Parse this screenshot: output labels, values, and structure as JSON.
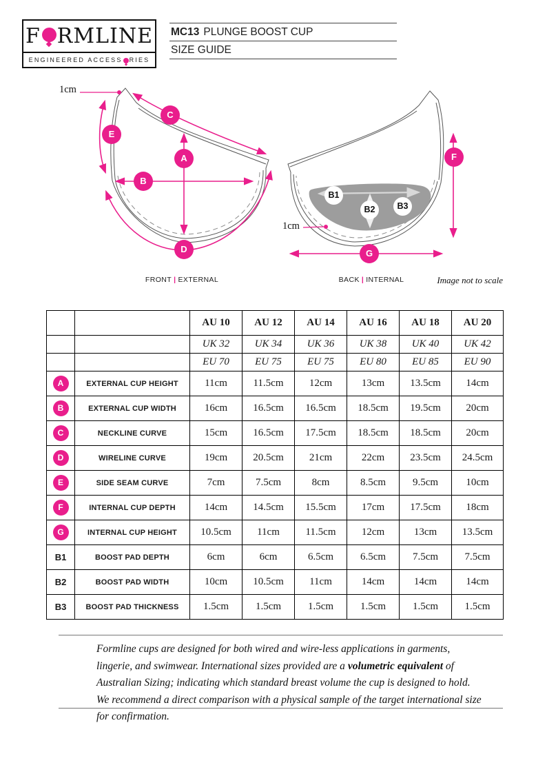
{
  "logo": {
    "brand_pre": "F",
    "brand_post": "RMLINE",
    "tagline_pre": "ENGINEERED ACCESS",
    "tagline_post": "RIES"
  },
  "header": {
    "model": "MC13",
    "product": "PLUNGE BOOST CUP",
    "subtitle": "SIZE GUIDE"
  },
  "diagram": {
    "front_label_left": "FRONT",
    "front_label_right": "EXTERNAL",
    "back_label_left": "BACK",
    "back_label_right": "INTERNAL",
    "separator": "|",
    "scale_note": "Image not to scale",
    "seam_note_front": "1cm",
    "seam_note_back": "1cm",
    "badges": {
      "A": "A",
      "B": "B",
      "C": "C",
      "D": "D",
      "E": "E",
      "F": "F",
      "G": "G",
      "B1": "B1",
      "B2": "B2",
      "B3": "B3"
    }
  },
  "table": {
    "header_rows": [
      {
        "style": "bold",
        "cells": [
          "AU 10",
          "AU 12",
          "AU 14",
          "AU 16",
          "AU 18",
          "AU 20"
        ]
      },
      {
        "style": "italic",
        "cells": [
          "UK 32",
          "UK 34",
          "UK 36",
          "UK 38",
          "UK 40",
          "UK 42"
        ]
      },
      {
        "style": "italic",
        "cells": [
          "EU 70",
          "EU 75",
          "EU 75",
          "EU 80",
          "EU 85",
          "EU 90"
        ]
      }
    ],
    "rows": [
      {
        "key": "A",
        "badge": "circle",
        "label": "EXTERNAL CUP HEIGHT",
        "values": [
          "11cm",
          "11.5cm",
          "12cm",
          "13cm",
          "13.5cm",
          "14cm"
        ]
      },
      {
        "key": "B",
        "badge": "circle",
        "label": "EXTERNAL CUP WIDTH",
        "values": [
          "16cm",
          "16.5cm",
          "16.5cm",
          "18.5cm",
          "19.5cm",
          "20cm"
        ]
      },
      {
        "key": "C",
        "badge": "circle",
        "label": "NECKLINE CURVE",
        "values": [
          "15cm",
          "16.5cm",
          "17.5cm",
          "18.5cm",
          "18.5cm",
          "20cm"
        ]
      },
      {
        "key": "D",
        "badge": "circle",
        "label": "WIRELINE CURVE",
        "values": [
          "19cm",
          "20.5cm",
          "21cm",
          "22cm",
          "23.5cm",
          "24.5cm"
        ]
      },
      {
        "key": "E",
        "badge": "circle",
        "label": "SIDE SEAM CURVE",
        "values": [
          "7cm",
          "7.5cm",
          "8cm",
          "8.5cm",
          "9.5cm",
          "10cm"
        ]
      },
      {
        "key": "F",
        "badge": "circle",
        "label": "INTERNAL CUP DEPTH",
        "values": [
          "14cm",
          "14.5cm",
          "15.5cm",
          "17cm",
          "17.5cm",
          "18cm"
        ]
      },
      {
        "key": "G",
        "badge": "circle",
        "label": "INTERNAL CUP HEIGHT",
        "values": [
          "10.5cm",
          "11cm",
          "11.5cm",
          "12cm",
          "13cm",
          "13.5cm"
        ]
      },
      {
        "key": "B1",
        "badge": "text",
        "label": "BOOST PAD DEPTH",
        "values": [
          "6cm",
          "6cm",
          "6.5cm",
          "6.5cm",
          "7.5cm",
          "7.5cm"
        ]
      },
      {
        "key": "B2",
        "badge": "text",
        "label": "BOOST PAD WIDTH",
        "values": [
          "10cm",
          "10.5cm",
          "11cm",
          "14cm",
          "14cm",
          "14cm"
        ]
      },
      {
        "key": "B3",
        "badge": "text",
        "label": "BOOST PAD THICKNESS",
        "values": [
          "1.5cm",
          "1.5cm",
          "1.5cm",
          "1.5cm",
          "1.5cm",
          "1.5cm"
        ]
      }
    ]
  },
  "footer": {
    "text_pre": "Formline cups are designed for both wired and wire-less applications in garments, lingerie, and swimwear. International sizes provided are a ",
    "text_bold": "volumetric equivalent",
    "text_post": " of Australian Sizing; indicating which standard breast volume the cup is designed to hold. We recommend a direct comparison with a physical sample of the target international size for confirmation."
  },
  "colors": {
    "accent": "#E91E8C",
    "pad_gray": "#9D9D9D"
  }
}
